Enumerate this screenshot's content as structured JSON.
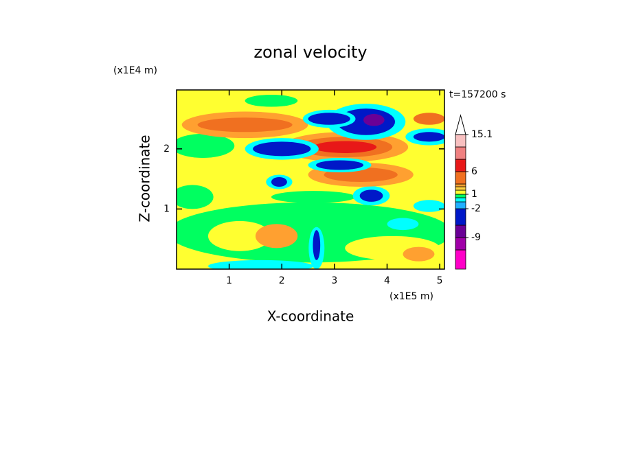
{
  "chart_data": {
    "type": "contour",
    "title": "zonal velocity",
    "x_label": "X-coordinate",
    "y_label": "Z-coordinate",
    "x_unit": "(x1E5 m)",
    "y_unit": "(x1E4 m)",
    "time_label": "t=157200 s",
    "xlim": [
      0,
      5.09
    ],
    "ylim": [
      0,
      2.98
    ],
    "xticks": [
      1,
      2,
      3,
      4,
      5
    ],
    "yticks": [
      1,
      2
    ],
    "background_value": 1.2,
    "colorbar": {
      "levels": [
        -12,
        -9,
        -6,
        -2,
        -1.5,
        -1,
        1,
        1.5,
        2,
        3,
        6,
        9,
        12,
        15.1
      ],
      "colors": [
        "#ff00c8",
        "#a000a8",
        "#6a0096",
        "#0018c8",
        "#20b0ff",
        "#00ffff",
        "#00ff60",
        "#ffff30",
        "#ffd040",
        "#ffa030",
        "#f07020",
        "#e81818",
        "#f08080",
        "#f8c0c0",
        "#ffffff"
      ],
      "ticks": [
        15.1,
        6,
        1,
        -2,
        -9
      ]
    },
    "field": [
      {
        "x": 2.53,
        "z": 0.61,
        "rx": 2.7,
        "rz": 0.5,
        "value": 0
      },
      {
        "x": 0.5,
        "z": 2.05,
        "rx": 0.6,
        "rz": 0.2,
        "value": 0
      },
      {
        "x": 0.3,
        "z": 1.2,
        "rx": 0.4,
        "rz": 0.2,
        "value": 0
      },
      {
        "x": 2.6,
        "z": 1.2,
        "rx": 0.8,
        "rz": 0.1,
        "value": 0
      },
      {
        "x": 1.8,
        "z": 2.8,
        "rx": 0.5,
        "rz": 0.1,
        "value": 0
      },
      {
        "x": 1.2,
        "z": 0.55,
        "rx": 0.6,
        "rz": 0.25,
        "value": 1.2
      },
      {
        "x": 1.9,
        "z": 0.55,
        "rx": 0.4,
        "rz": 0.2,
        "value": 2.5
      },
      {
        "x": 4.1,
        "z": 0.35,
        "rx": 0.9,
        "rz": 0.2,
        "value": 1.2
      },
      {
        "x": 4.6,
        "z": 0.25,
        "rx": 0.3,
        "rz": 0.12,
        "value": 2.5
      },
      {
        "x": 1.6,
        "z": 0.05,
        "rx": 1.0,
        "rz": 0.1,
        "value": -1.2
      },
      {
        "x": 4.3,
        "z": 0.75,
        "rx": 0.3,
        "rz": 0.1,
        "value": -1.2
      },
      {
        "x": 2.66,
        "z": 0.35,
        "rx": 0.15,
        "rz": 0.35,
        "value": -1.2
      },
      {
        "x": 2.66,
        "z": 0.4,
        "rx": 0.07,
        "rz": 0.25,
        "value": -4
      },
      {
        "x": 4.8,
        "z": 1.05,
        "rx": 0.3,
        "rz": 0.1,
        "value": -1.2
      },
      {
        "x": 3.7,
        "z": 1.22,
        "rx": 0.35,
        "rz": 0.16,
        "value": -1.2
      },
      {
        "x": 3.7,
        "z": 1.22,
        "rx": 0.22,
        "rz": 0.1,
        "value": -4
      },
      {
        "x": 3.5,
        "z": 1.57,
        "rx": 1.0,
        "rz": 0.2,
        "value": 2.5
      },
      {
        "x": 3.5,
        "z": 1.57,
        "rx": 0.7,
        "rz": 0.12,
        "value": 4
      },
      {
        "x": 1.3,
        "z": 2.4,
        "rx": 1.2,
        "rz": 0.22,
        "value": 2.5
      },
      {
        "x": 1.3,
        "z": 2.4,
        "rx": 0.9,
        "rz": 0.12,
        "value": 4
      },
      {
        "x": 3.2,
        "z": 2.03,
        "rx": 1.2,
        "rz": 0.25,
        "value": 2.5
      },
      {
        "x": 3.2,
        "z": 2.03,
        "rx": 0.9,
        "rz": 0.17,
        "value": 4
      },
      {
        "x": 3.2,
        "z": 2.03,
        "rx": 0.6,
        "rz": 0.1,
        "value": 7
      },
      {
        "x": 3.1,
        "z": 1.73,
        "rx": 0.6,
        "rz": 0.12,
        "value": -1.2
      },
      {
        "x": 3.1,
        "z": 1.73,
        "rx": 0.45,
        "rz": 0.08,
        "value": -4
      },
      {
        "x": 2.0,
        "z": 2.0,
        "rx": 0.7,
        "rz": 0.18,
        "value": -1.2
      },
      {
        "x": 2.0,
        "z": 2.0,
        "rx": 0.55,
        "rz": 0.12,
        "value": -4
      },
      {
        "x": 1.95,
        "z": 1.45,
        "rx": 0.25,
        "rz": 0.12,
        "value": -1.2
      },
      {
        "x": 1.95,
        "z": 1.45,
        "rx": 0.15,
        "rz": 0.08,
        "value": -4
      },
      {
        "x": 3.6,
        "z": 2.45,
        "rx": 0.75,
        "rz": 0.3,
        "value": -1.2
      },
      {
        "x": 3.6,
        "z": 2.45,
        "rx": 0.55,
        "rz": 0.22,
        "value": -4
      },
      {
        "x": 3.75,
        "z": 2.48,
        "rx": 0.2,
        "rz": 0.1,
        "value": -8
      },
      {
        "x": 2.9,
        "z": 2.5,
        "rx": 0.5,
        "rz": 0.15,
        "value": -1.2
      },
      {
        "x": 2.9,
        "z": 2.5,
        "rx": 0.4,
        "rz": 0.1,
        "value": -4
      },
      {
        "x": 4.8,
        "z": 2.5,
        "rx": 0.3,
        "rz": 0.1,
        "value": 4
      },
      {
        "x": 4.8,
        "z": 2.2,
        "rx": 0.45,
        "rz": 0.14,
        "value": -1.2
      },
      {
        "x": 4.8,
        "z": 2.2,
        "rx": 0.3,
        "rz": 0.08,
        "value": -4
      }
    ]
  }
}
